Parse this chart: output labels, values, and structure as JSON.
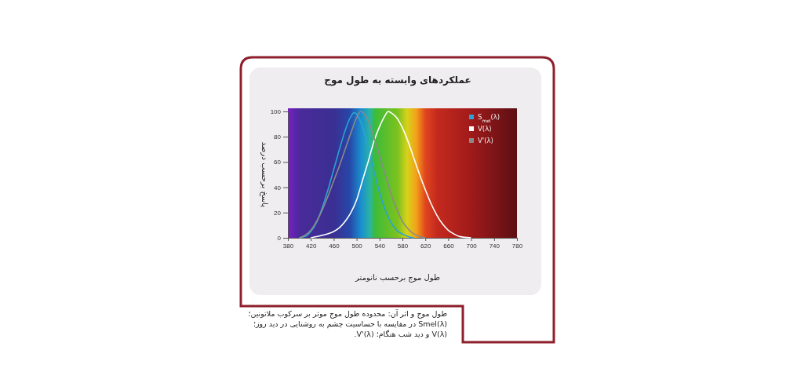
{
  "chart_data": {
    "type": "line",
    "title": "عملکردهای وابسته به طول موج",
    "xlabel": "طول موج برحسب نانومتر",
    "ylabel": "پاسخ برحسب درصد",
    "xlim": [
      380,
      780
    ],
    "xticks": [
      380,
      420,
      460,
      500,
      540,
      580,
      620,
      660,
      700,
      740,
      780
    ],
    "ylim": [
      0,
      100
    ],
    "yticks": [
      0,
      20,
      40,
      60,
      80,
      100
    ],
    "grid": false,
    "legend": "top right",
    "marker": "none",
    "line_style": "solid",
    "series": [
      {
        "name": "S$_{mel}$(λ)",
        "color": "#2aa3d4",
        "x": [
          400,
          410,
          420,
          430,
          440,
          450,
          460,
          470,
          480,
          490,
          495,
          500,
          510,
          520,
          530,
          540,
          550,
          560,
          570,
          580,
          590,
          600
        ],
        "values": [
          0,
          1,
          5,
          12,
          24,
          38,
          54,
          70,
          85,
          96,
          99,
          98,
          88,
          72,
          53,
          36,
          22,
          12,
          6,
          3,
          1,
          0
        ]
      },
      {
        "name": "V(λ)",
        "color": "#ffffff",
        "x": [
          420,
          440,
          460,
          470,
          480,
          490,
          500,
          510,
          520,
          530,
          540,
          550,
          555,
          560,
          570,
          580,
          590,
          600,
          610,
          620,
          630,
          640,
          650,
          660,
          670,
          680,
          700
        ],
        "values": [
          0,
          2,
          5,
          8,
          13,
          20,
          30,
          45,
          60,
          76,
          88,
          97,
          100,
          99,
          95,
          87,
          76,
          63,
          50,
          38,
          27,
          18,
          11,
          6,
          3,
          1,
          0
        ]
      },
      {
        "name": "V'(λ)",
        "color": "#8a8a8a",
        "x": [
          400,
          410,
          420,
          430,
          440,
          450,
          460,
          470,
          480,
          490,
          500,
          507,
          515,
          520,
          530,
          540,
          550,
          560,
          570,
          580,
          590,
          600,
          610,
          620
        ],
        "values": [
          0,
          2,
          6,
          13,
          22,
          33,
          45,
          57,
          70,
          83,
          95,
          100,
          97,
          93,
          80,
          65,
          50,
          35,
          23,
          13,
          7,
          3,
          1,
          0
        ]
      }
    ],
    "annotations": [
      "طول موج و اثر آن: محدوده طول موج موثر بر سرکوب ملاتونین؛ Smel(λ) در مقایسه با حساسیت چشم به روشنایی در دید روز؛ V(λ) و دید شب هنگام؛ V'(λ)."
    ]
  }
}
